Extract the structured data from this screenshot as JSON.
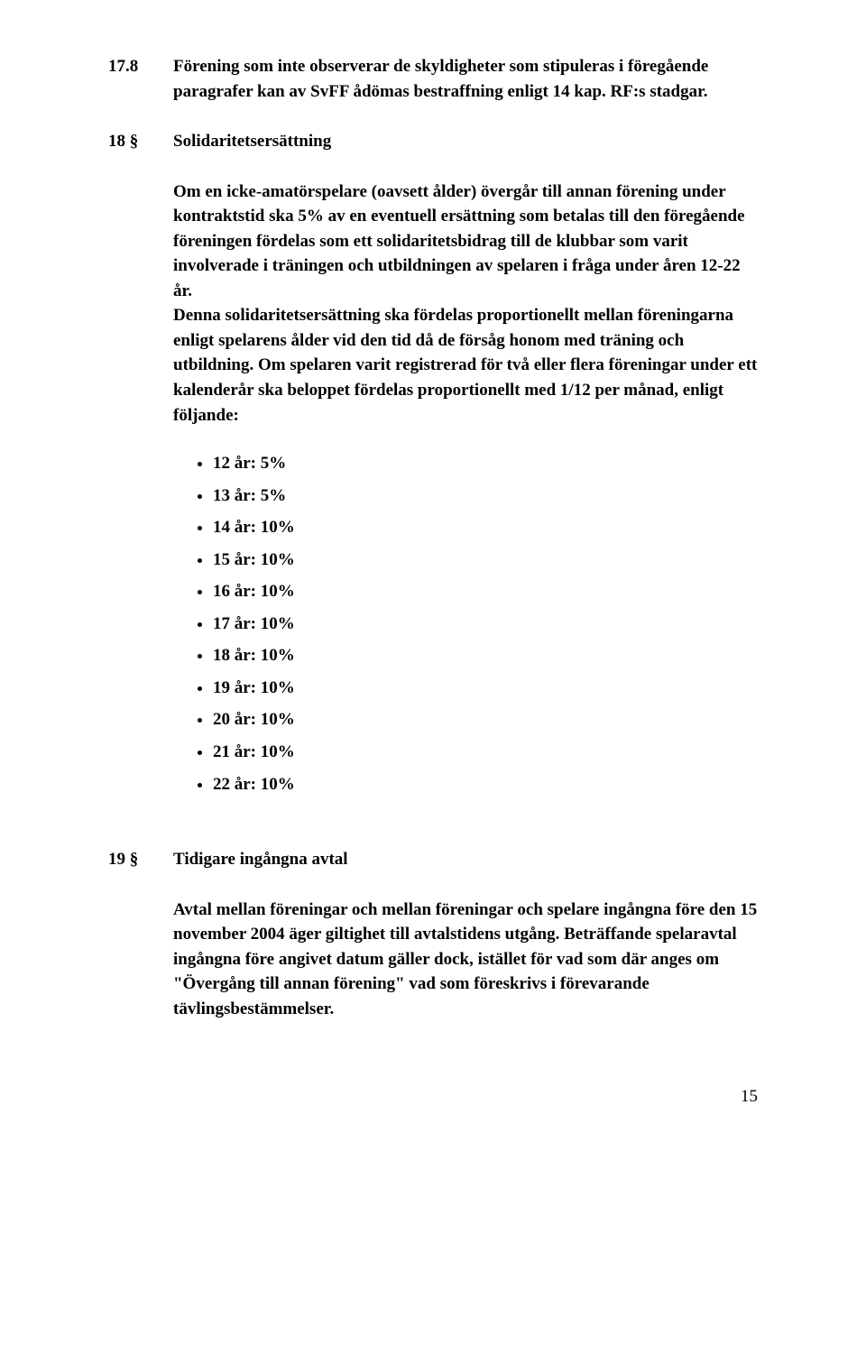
{
  "para_17_8": {
    "num": "17.8",
    "text": "Förening som inte observerar de skyldigheter som stipuleras i föregående paragrafer kan av SvFF ådömas bestraffning enligt 14 kap. RF:s stadgar."
  },
  "para_18": {
    "num": "18 §",
    "title": "Solidaritetsersättning",
    "text1": "Om en icke-amatörspelare (oavsett ålder) övergår till annan förening under kontraktstid ska 5% av en eventuell ersättning som betalas till den föregående föreningen fördelas som ett solidaritetsbidrag till de klubbar som varit involverade i träningen och utbildningen av spelaren i fråga under åren 12-22 år.",
    "text2": "Denna solidaritetsersättning ska fördelas proportionellt mellan föreningarna enligt spelarens ålder vid den tid då de försåg honom med träning och utbildning. Om spelaren varit registrerad för två eller flera föreningar under ett kalenderår ska beloppet fördelas proportionellt med 1/12 per månad, enligt följande:",
    "list": [
      "12 år: 5%",
      "13 år: 5%",
      "14 år: 10%",
      "15 år: 10%",
      "16 år: 10%",
      "17 år: 10%",
      "18 år: 10%",
      "19 år: 10%",
      "20 år: 10%",
      "21 år: 10%",
      "22 år: 10%"
    ]
  },
  "para_19": {
    "num": "19 §",
    "title": "Tidigare ingångna avtal",
    "text": "Avtal mellan föreningar och mellan föreningar och spelare ingångna före den 15 november 2004 äger giltighet till avtalstidens utgång. Beträffande spelaravtal ingångna före angivet datum gäller dock, istället för vad som där anges om \"Övergång till annan förening\" vad som föreskrivs i förevarande tävlingsbestämmelser."
  },
  "pagenum": "15"
}
